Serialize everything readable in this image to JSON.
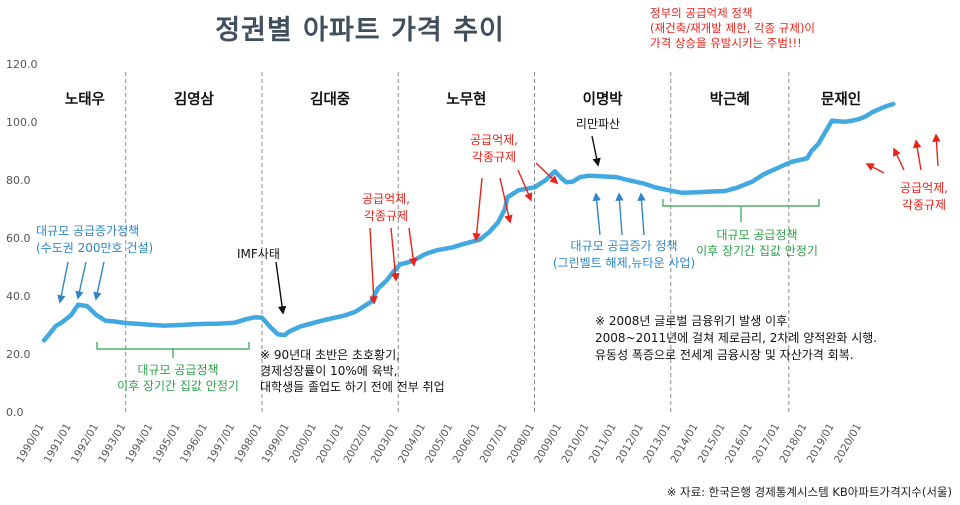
{
  "title": "정권별 아파트 가격 추이",
  "top_note": [
    "정부의 공급억제 정책",
    "(재건축/재개발 제한, 각종 규제)이",
    "가격 상승을 유발시키는 주범!!!"
  ],
  "source": "※ 자료: 한국은행 경제통계시스템 KB아파트가격지수(서울)",
  "colors": {
    "line": "#41a8e0",
    "red": "#e8231b",
    "blue": "#2e86c8",
    "green": "#2ea24a",
    "dark": "#222222"
  },
  "chart_data": {
    "type": "line",
    "title": "정권별 아파트 가격 추이",
    "xlabel": "",
    "ylabel": "",
    "ylim": [
      0,
      120
    ],
    "yticks": [
      "0.0",
      "20.0",
      "40.0",
      "60.0",
      "80.0",
      "100.0",
      "120.0"
    ],
    "xticks": [
      "1990/01",
      "1991/01",
      "1992/01",
      "1993/01",
      "1994/01",
      "1995/01",
      "1996/01",
      "1997/01",
      "1998/01",
      "1999/01",
      "2000/01",
      "2001/01",
      "2002/01",
      "2003/01",
      "2004/01",
      "2005/01",
      "2006/01",
      "2007/01",
      "2008/01",
      "2009/01",
      "2010/01",
      "2011/01",
      "2012/01",
      "2013/01",
      "2014/01",
      "2015/01",
      "2016/01",
      "2017/01",
      "2018/01",
      "2019/01",
      "2020/01"
    ],
    "grid": false,
    "series": [
      {
        "x": [
          "1990/01",
          "1990/03",
          "1990/06",
          "1990/09",
          "1991/01",
          "1991/04",
          "1991/08",
          "1991/12",
          "1992/04",
          "1992/08",
          "1993/01",
          "1993/06",
          "1994/01",
          "1994/06",
          "1995/01",
          "1995/06",
          "1996/01",
          "1996/06",
          "1997/01",
          "1997/06",
          "1997/10",
          "1998/01",
          "1998/05",
          "1998/08",
          "1998/11",
          "1999/01",
          "1999/06",
          "2000/01",
          "2000/06",
          "2001/01",
          "2001/06",
          "2001/10",
          "2002/01",
          "2002/04",
          "2002/08",
          "2002/11",
          "2003/02",
          "2003/04",
          "2003/07",
          "2003/10",
          "2004/01",
          "2004/06",
          "2005/01",
          "2005/06",
          "2006/01",
          "2006/05",
          "2006/09",
          "2006/12",
          "2007/01",
          "2007/06",
          "2008/01",
          "2008/06",
          "2008/10",
          "2009/01",
          "2009/03",
          "2009/06",
          "2009/09",
          "2010/01",
          "2010/06",
          "2011/01",
          "2011/06",
          "2012/01",
          "2012/06",
          "2013/01",
          "2013/06",
          "2014/01",
          "2014/06",
          "2015/01",
          "2015/06",
          "2016/01",
          "2016/06",
          "2017/01",
          "2017/06",
          "2018/01",
          "2018/03",
          "2018/06",
          "2018/09",
          "2018/12",
          "2019/03",
          "2019/06",
          "2019/09",
          "2019/12",
          "2020/03",
          "2020/06",
          "2020/09",
          "2020/12",
          "2021/03"
        ],
        "values": [
          24.7,
          26.5,
          29.5,
          31.0,
          33.5,
          37.0,
          36.5,
          33.5,
          31.5,
          31.2,
          30.7,
          30.4,
          30.0,
          29.8,
          30.0,
          30.2,
          30.4,
          30.5,
          30.8,
          32.0,
          32.7,
          32.5,
          29.0,
          26.8,
          26.5,
          27.8,
          29.5,
          31.0,
          32.0,
          33.2,
          34.5,
          36.5,
          38.0,
          42.5,
          45.5,
          48.5,
          51.0,
          51.3,
          52.0,
          53.2,
          54.5,
          55.8,
          56.8,
          58.0,
          59.5,
          62.0,
          65.5,
          70.0,
          74.0,
          76.5,
          77.5,
          80.0,
          83.0,
          80.5,
          79.2,
          79.5,
          81.0,
          81.5,
          81.3,
          81.0,
          80.0,
          78.8,
          77.5,
          76.3,
          75.6,
          75.8,
          76.0,
          76.2,
          77.3,
          79.5,
          82.0,
          84.5,
          86.2,
          87.5,
          90.0,
          92.5,
          96.5,
          100.5,
          100.2,
          100.1,
          100.5,
          101.0,
          102.0,
          103.5,
          104.5,
          105.5,
          106.2
        ]
      }
    ],
    "eras": [
      {
        "name": "노태우",
        "start": "1990/01",
        "end": "1993/01"
      },
      {
        "name": "김영삼",
        "start": "1993/01",
        "end": "1998/01"
      },
      {
        "name": "김대중",
        "start": "1998/01",
        "end": "2003/01"
      },
      {
        "name": "노무현",
        "start": "2003/01",
        "end": "2008/01"
      },
      {
        "name": "이명박",
        "start": "2008/01",
        "end": "2013/01"
      },
      {
        "name": "박근혜",
        "start": "2013/01",
        "end": "2017/05"
      },
      {
        "name": "문재인",
        "start": "2017/05",
        "end": "2021/03"
      }
    ],
    "annotations": {
      "supply_increase_1": [
        "대규모 공급증가정책",
        "(수도권 200만호 건설)"
      ],
      "stable_1": [
        "대규모 공급정책",
        "이후 장기간 집값 안정기"
      ],
      "imf": "IMF사태",
      "note_90s": [
        "※ 90년대 초반은 초호황기,",
        "경제성장률이 10%에 육박,",
        "대학생들 졸업도 하기 전에 전부 취업"
      ],
      "supply_restrict_kdj": [
        "공급억제,",
        "각종규제"
      ],
      "supply_restrict_roh": [
        "공급억제,",
        "각종규제"
      ],
      "lehman": "리만파산",
      "supply_increase_2": [
        "대규모 공급증가 정책",
        "(그린벨트 해제,뉴타운 사업)"
      ],
      "stable_2": [
        "대규모 공급정책",
        "이후 장기간 집값 안정기"
      ],
      "note_2008": [
        "※ 2008년 글로벌 금융위기 발생 이후",
        "2008~2011년에 걸쳐 제로금리, 2차례 양적완화 시행.",
        "유동성 폭증으로 전세계 금융시장 및 자산가격 회복."
      ],
      "supply_restrict_moon": [
        "공급억제,",
        "각종규제"
      ]
    }
  }
}
